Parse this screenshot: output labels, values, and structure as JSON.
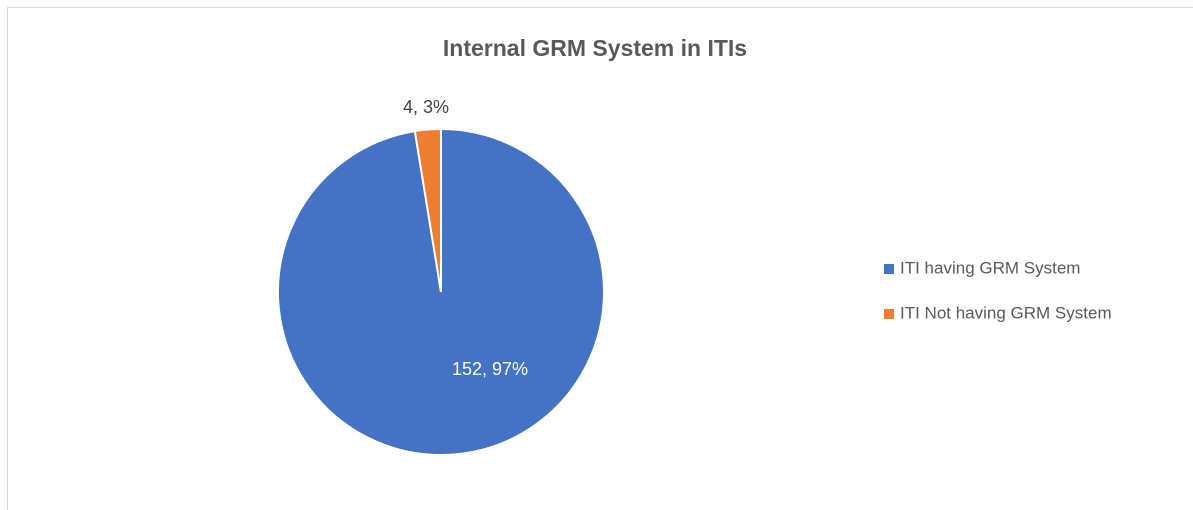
{
  "chart_data": {
    "type": "pie",
    "title": "Internal GRM System in ITIs",
    "categories": [
      "ITI having GRM System",
      "ITI Not having GRM System"
    ],
    "values": [
      152,
      4
    ],
    "value_labels": [
      "152, 97%",
      "4, 3%"
    ],
    "colors": [
      "#4472c4",
      "#ed7d31"
    ],
    "legend": "right"
  }
}
